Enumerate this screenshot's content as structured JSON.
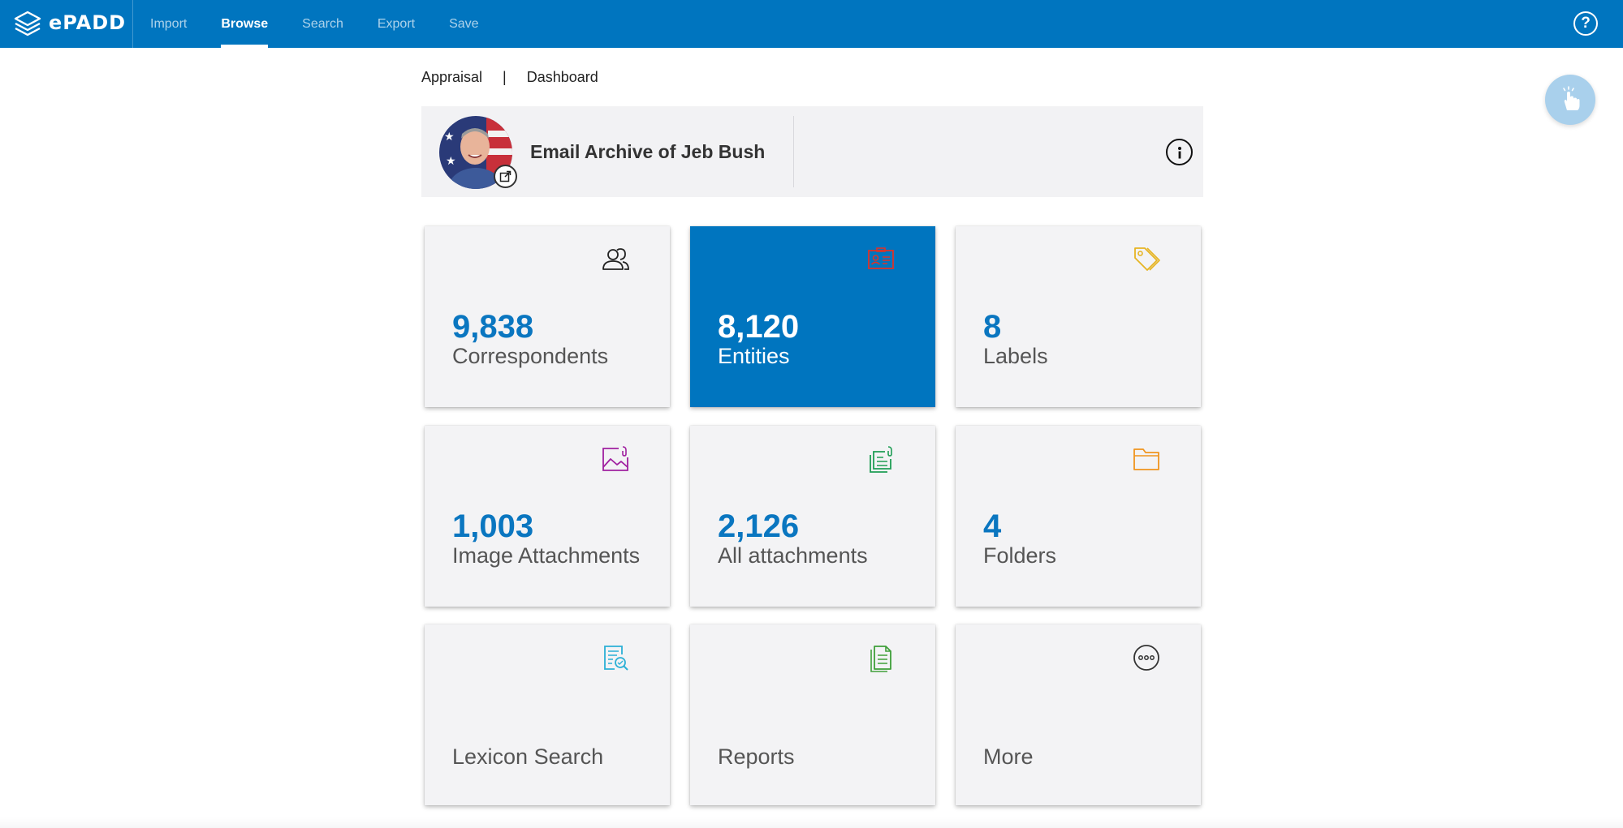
{
  "app": {
    "logo_text": "ePADD"
  },
  "nav": {
    "items": [
      "Import",
      "Browse",
      "Search",
      "Export",
      "Save"
    ],
    "active": "Browse",
    "help_glyph": "?"
  },
  "breadcrumb": {
    "first": "Appraisal",
    "separator": "|",
    "second": "Dashboard"
  },
  "archive": {
    "title": "Email Archive of Jeb Bush"
  },
  "tiles": [
    {
      "count": "9,838",
      "label": "Correspondents",
      "icon": "users-icon",
      "color": "#222222"
    },
    {
      "count": "8,120",
      "label": "Entities",
      "icon": "id-card-icon",
      "color": "#d9342b"
    },
    {
      "count": "8",
      "label": "Labels",
      "icon": "tags-icon",
      "color": "#e6b422"
    },
    {
      "count": "1,003",
      "label": "Image Attachments",
      "icon": "image-icon",
      "color": "#a020a0"
    },
    {
      "count": "2,126",
      "label": "All attachments",
      "icon": "attachments-icon",
      "color": "#1f9d55"
    },
    {
      "count": "4",
      "label": "Folders",
      "icon": "folder-icon",
      "color": "#f0941e"
    },
    {
      "count": "",
      "label": "Lexicon Search",
      "icon": "lexicon-search-icon",
      "color": "#2bb0d6"
    },
    {
      "count": "",
      "label": "Reports",
      "icon": "reports-icon",
      "color": "#3f9f3a"
    },
    {
      "count": "",
      "label": "More",
      "icon": "more-icon",
      "color": "#333333"
    }
  ],
  "colors": {
    "brand": "#0075bf",
    "count_text": "#0a76c0",
    "fab": "#a9d0ec"
  }
}
